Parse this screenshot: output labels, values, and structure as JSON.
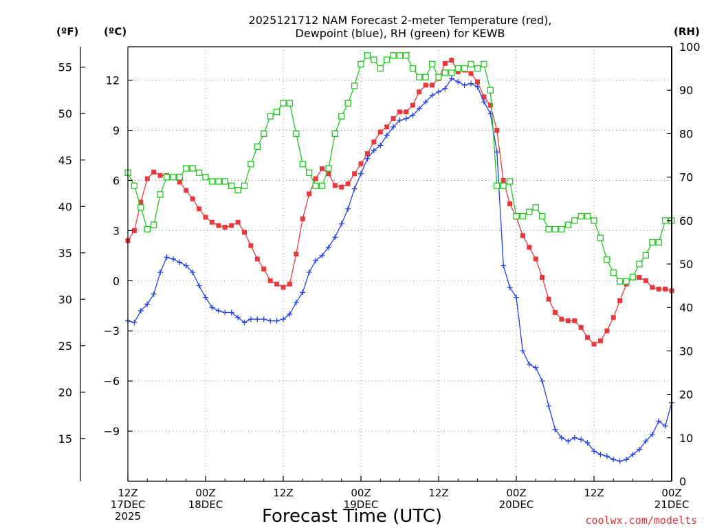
{
  "chart_data": {
    "type": "line",
    "title": "2025121712 NAM Forecast 2-meter Temperature (red),",
    "subtitle": "Dewpoint (blue), RH (green) for KEWB",
    "xlabel": "Forecast Time (UTC)",
    "credit": "coolwx.com/modelts",
    "units": {
      "f": "(ºF)",
      "c": "(ºC)",
      "rh": "(RH)"
    },
    "x_range_hours": [
      0,
      84
    ],
    "x_ticks": [
      {
        "hour": 0,
        "lines": [
          "12Z",
          "17DEC",
          "2025"
        ]
      },
      {
        "hour": 12,
        "lines": [
          "00Z",
          "18DEC"
        ]
      },
      {
        "hour": 24,
        "lines": [
          "12Z"
        ]
      },
      {
        "hour": 36,
        "lines": [
          "00Z",
          "19DEC"
        ]
      },
      {
        "hour": 48,
        "lines": [
          "12Z"
        ]
      },
      {
        "hour": 60,
        "lines": [
          "00Z",
          "20DEC"
        ]
      },
      {
        "hour": 72,
        "lines": [
          "12Z"
        ]
      },
      {
        "hour": 84,
        "lines": [
          "00Z",
          "21DEC"
        ]
      }
    ],
    "y_celsius": {
      "range": [
        -12,
        14
      ],
      "ticks": [
        -9,
        -6,
        -3,
        0,
        3,
        6,
        9,
        12
      ]
    },
    "y_fahrenheit": {
      "ticks": [
        15,
        20,
        25,
        30,
        35,
        40,
        45,
        50,
        55
      ]
    },
    "y_rh": {
      "range": [
        0,
        100
      ],
      "ticks": [
        0,
        10,
        20,
        30,
        40,
        50,
        60,
        70,
        80,
        90,
        100
      ]
    },
    "series": [
      {
        "name": "Temperature (C)",
        "color": "#e8383c",
        "marker": "square-filled",
        "points": [
          [
            0,
            2.4
          ],
          [
            1,
            3.0
          ],
          [
            2,
            4.7
          ],
          [
            3,
            6.1
          ],
          [
            4,
            6.5
          ],
          [
            5,
            6.3
          ],
          [
            6,
            6.3
          ],
          [
            7,
            6.2
          ],
          [
            8,
            5.9
          ],
          [
            9,
            5.4
          ],
          [
            10,
            4.9
          ],
          [
            11,
            4.3
          ],
          [
            12,
            3.8
          ],
          [
            13,
            3.5
          ],
          [
            14,
            3.3
          ],
          [
            15,
            3.2
          ],
          [
            16,
            3.3
          ],
          [
            17,
            3.5
          ],
          [
            18,
            2.9
          ],
          [
            19,
            2.1
          ],
          [
            20,
            1.3
          ],
          [
            21,
            0.7
          ],
          [
            22,
            0
          ],
          [
            23,
            -0.2
          ],
          [
            24,
            -0.4
          ],
          [
            25,
            -0.2
          ],
          [
            26,
            1.6
          ],
          [
            27,
            3.7
          ],
          [
            28,
            5.2
          ],
          [
            29,
            6.1
          ],
          [
            30,
            6.7
          ],
          [
            31,
            6.4
          ],
          [
            32,
            5.7
          ],
          [
            33,
            5.6
          ],
          [
            34,
            5.8
          ],
          [
            35,
            6.4
          ],
          [
            36,
            7.0
          ],
          [
            37,
            7.6
          ],
          [
            38,
            8.3
          ],
          [
            39,
            8.9
          ],
          [
            40,
            9.2
          ],
          [
            41,
            9.7
          ],
          [
            42,
            10.1
          ],
          [
            43,
            10.1
          ],
          [
            44,
            10.5
          ],
          [
            45,
            11.3
          ],
          [
            46,
            11.7
          ],
          [
            47,
            11.7
          ],
          [
            48,
            12.1
          ],
          [
            49,
            13.0
          ],
          [
            50,
            13.2
          ],
          [
            51,
            12.5
          ],
          [
            52,
            12.6
          ],
          [
            53,
            12.4
          ],
          [
            54,
            11.9
          ],
          [
            55,
            11.0
          ],
          [
            56,
            10.5
          ],
          [
            57,
            9.0
          ],
          [
            58,
            6.0
          ],
          [
            59,
            4.6
          ],
          [
            60,
            3.8
          ],
          [
            61,
            2.7
          ],
          [
            62,
            2.0
          ],
          [
            63,
            1.3
          ],
          [
            64,
            0.2
          ],
          [
            65,
            -1.1
          ],
          [
            66,
            -1.9
          ],
          [
            67,
            -2.3
          ],
          [
            68,
            -2.4
          ],
          [
            69,
            -2.4
          ],
          [
            70,
            -2.8
          ],
          [
            71,
            -3.4
          ],
          [
            72,
            -3.8
          ],
          [
            73,
            -3.6
          ],
          [
            74,
            -3.0
          ],
          [
            75,
            -2.2
          ],
          [
            76,
            -1.2
          ],
          [
            77,
            -0.2
          ],
          [
            78,
            0.2
          ],
          [
            79,
            0.2
          ],
          [
            80,
            0
          ],
          [
            81,
            -0.4
          ],
          [
            82,
            -0.5
          ],
          [
            83,
            -0.5
          ],
          [
            84,
            -0.6
          ]
        ]
      },
      {
        "name": "Dewpoint (C)",
        "color": "#1f3ff0",
        "marker": "plus",
        "points": [
          [
            0,
            -2.4
          ],
          [
            1,
            -2.5
          ],
          [
            2,
            -1.8
          ],
          [
            3,
            -1.4
          ],
          [
            4,
            -0.8
          ],
          [
            5,
            0.5
          ],
          [
            6,
            1.4
          ],
          [
            7,
            1.3
          ],
          [
            8,
            1.1
          ],
          [
            9,
            0.9
          ],
          [
            10,
            0.5
          ],
          [
            11,
            -0.3
          ],
          [
            12,
            -1.0
          ],
          [
            13,
            -1.6
          ],
          [
            14,
            -1.8
          ],
          [
            15,
            -1.9
          ],
          [
            16,
            -1.9
          ],
          [
            17,
            -2.2
          ],
          [
            18,
            -2.5
          ],
          [
            19,
            -2.3
          ],
          [
            20,
            -2.3
          ],
          [
            21,
            -2.3
          ],
          [
            22,
            -2.4
          ],
          [
            23,
            -2.4
          ],
          [
            24,
            -2.3
          ],
          [
            25,
            -2.0
          ],
          [
            26,
            -1.3
          ],
          [
            27,
            -0.7
          ],
          [
            28,
            0.5
          ],
          [
            29,
            1.2
          ],
          [
            30,
            1.5
          ],
          [
            31,
            2.0
          ],
          [
            32,
            2.6
          ],
          [
            33,
            3.4
          ],
          [
            34,
            4.3
          ],
          [
            35,
            5.5
          ],
          [
            36,
            6.4
          ],
          [
            37,
            7.3
          ],
          [
            38,
            7.8
          ],
          [
            39,
            8.1
          ],
          [
            40,
            8.7
          ],
          [
            41,
            9.2
          ],
          [
            42,
            9.6
          ],
          [
            43,
            9.7
          ],
          [
            44,
            9.9
          ],
          [
            45,
            10.3
          ],
          [
            46,
            10.7
          ],
          [
            47,
            11.1
          ],
          [
            48,
            11.3
          ],
          [
            49,
            11.5
          ],
          [
            50,
            12.1
          ],
          [
            51,
            11.9
          ],
          [
            52,
            11.7
          ],
          [
            53,
            11.8
          ],
          [
            54,
            11.6
          ],
          [
            55,
            10.7
          ],
          [
            56,
            10.0
          ],
          [
            57,
            7.7
          ],
          [
            58,
            0.9
          ],
          [
            59,
            -0.4
          ],
          [
            60,
            -1.0
          ],
          [
            61,
            -4.2
          ],
          [
            62,
            -5.0
          ],
          [
            63,
            -5.2
          ],
          [
            64,
            -6.0
          ],
          [
            65,
            -7.5
          ],
          [
            66,
            -8.9
          ],
          [
            67,
            -9.4
          ],
          [
            68,
            -9.6
          ],
          [
            69,
            -9.4
          ],
          [
            70,
            -9.5
          ],
          [
            71,
            -9.7
          ],
          [
            72,
            -10.2
          ],
          [
            73,
            -10.4
          ],
          [
            74,
            -10.5
          ],
          [
            75,
            -10.7
          ],
          [
            76,
            -10.8
          ],
          [
            77,
            -10.7
          ],
          [
            78,
            -10.4
          ],
          [
            79,
            -10.1
          ],
          [
            80,
            -9.6
          ],
          [
            81,
            -9.2
          ],
          [
            82,
            -8.4
          ],
          [
            83,
            -8.7
          ],
          [
            84,
            -7.3
          ]
        ]
      },
      {
        "name": "RH (%)",
        "color": "#1ec81e",
        "marker": "square-open",
        "points": [
          [
            0,
            71
          ],
          [
            1,
            68
          ],
          [
            2,
            63
          ],
          [
            3,
            58
          ],
          [
            4,
            59
          ],
          [
            5,
            66
          ],
          [
            6,
            70
          ],
          [
            7,
            70
          ],
          [
            8,
            70
          ],
          [
            9,
            72
          ],
          [
            10,
            72
          ],
          [
            11,
            71
          ],
          [
            12,
            70
          ],
          [
            13,
            69
          ],
          [
            14,
            69
          ],
          [
            15,
            69
          ],
          [
            16,
            68
          ],
          [
            17,
            67
          ],
          [
            18,
            68
          ],
          [
            19,
            73
          ],
          [
            20,
            77
          ],
          [
            21,
            80
          ],
          [
            22,
            84
          ],
          [
            23,
            85
          ],
          [
            24,
            87
          ],
          [
            25,
            87
          ],
          [
            26,
            80
          ],
          [
            27,
            73
          ],
          [
            28,
            71
          ],
          [
            29,
            68
          ],
          [
            30,
            68
          ],
          [
            31,
            72
          ],
          [
            32,
            80
          ],
          [
            33,
            84
          ],
          [
            34,
            87
          ],
          [
            35,
            91
          ],
          [
            36,
            96
          ],
          [
            37,
            98
          ],
          [
            38,
            97
          ],
          [
            39,
            95
          ],
          [
            40,
            97
          ],
          [
            41,
            98
          ],
          [
            42,
            98
          ],
          [
            43,
            98
          ],
          [
            44,
            95
          ],
          [
            45,
            93
          ],
          [
            46,
            93
          ],
          [
            47,
            96
          ],
          [
            48,
            93
          ],
          [
            49,
            94
          ],
          [
            50,
            94
          ],
          [
            51,
            95
          ],
          [
            52,
            95
          ],
          [
            53,
            96
          ],
          [
            54,
            95
          ],
          [
            55,
            96
          ],
          [
            56,
            90
          ],
          [
            57,
            68
          ],
          [
            58,
            68
          ],
          [
            59,
            69
          ],
          [
            60,
            61
          ],
          [
            61,
            61
          ],
          [
            62,
            62
          ],
          [
            63,
            63
          ],
          [
            64,
            61
          ],
          [
            65,
            58
          ],
          [
            66,
            58
          ],
          [
            67,
            58
          ],
          [
            68,
            59
          ],
          [
            69,
            60
          ],
          [
            70,
            61
          ],
          [
            71,
            61
          ],
          [
            72,
            60
          ],
          [
            73,
            56
          ],
          [
            74,
            51
          ],
          [
            75,
            48
          ],
          [
            76,
            46
          ],
          [
            77,
            46
          ],
          [
            78,
            47
          ],
          [
            79,
            50
          ],
          [
            80,
            52
          ],
          [
            81,
            55
          ],
          [
            82,
            55
          ],
          [
            83,
            60
          ],
          [
            84,
            60
          ]
        ]
      }
    ]
  }
}
